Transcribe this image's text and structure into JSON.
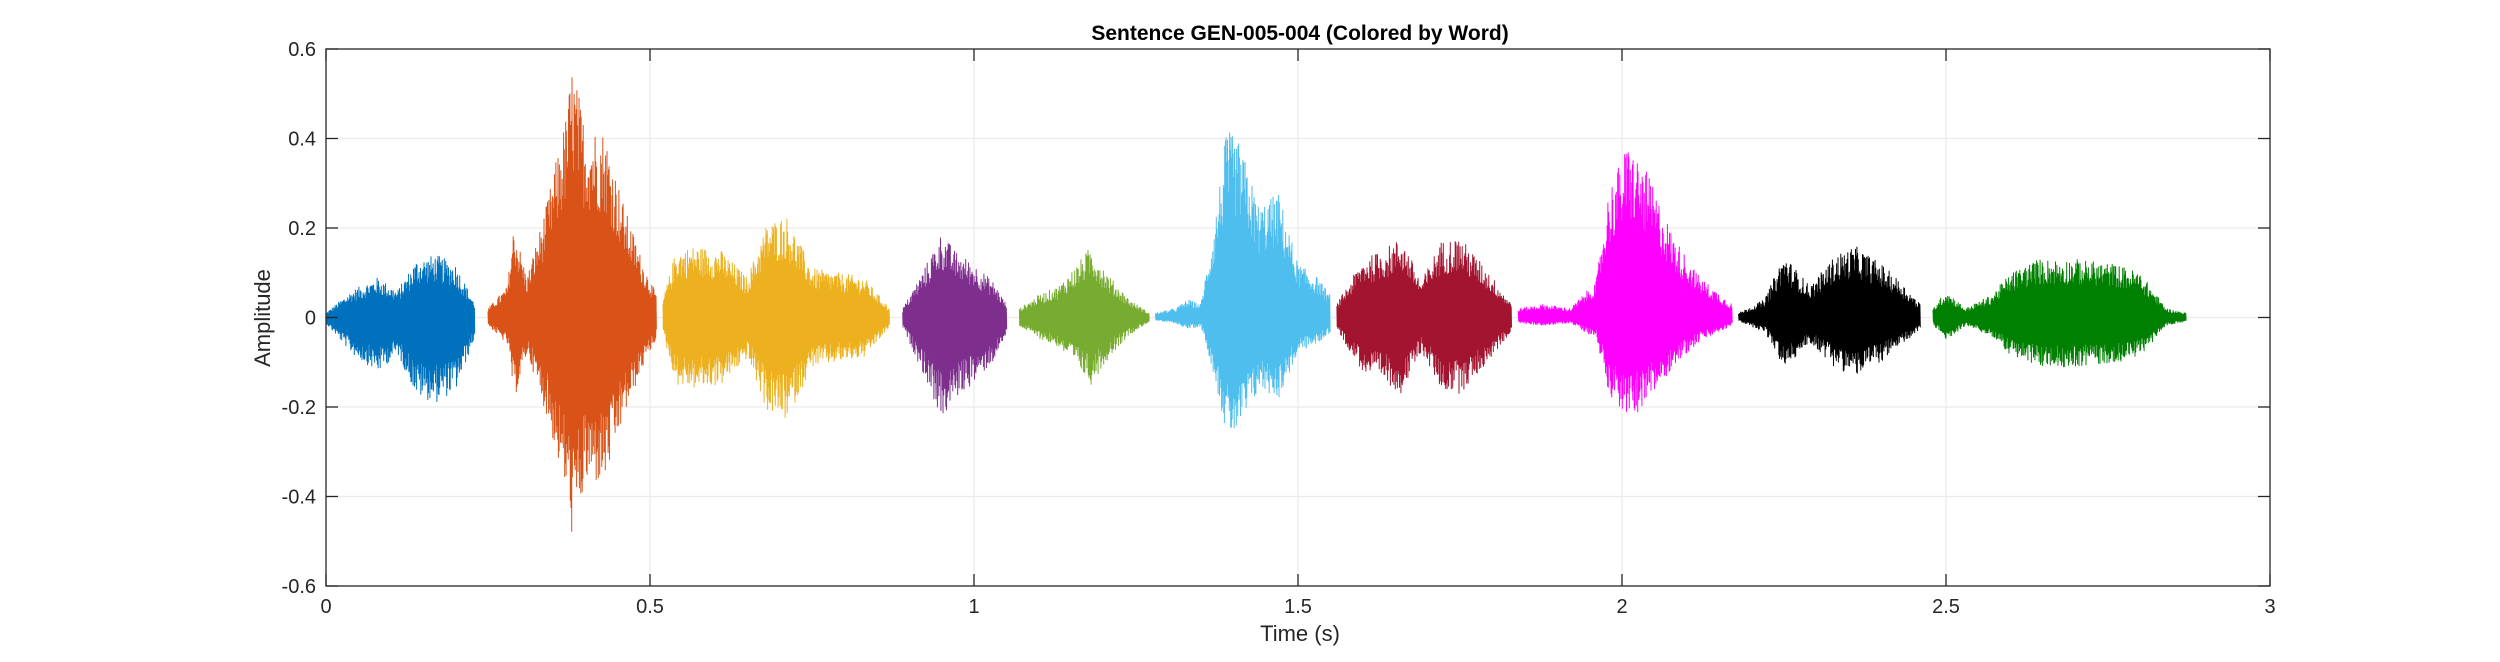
{
  "chart_data": {
    "type": "line",
    "title": "Sentence GEN-005-004 (Colored by Word)",
    "xlabel": "Time (s)",
    "ylabel": "Amplitude",
    "xlim": [
      0,
      3
    ],
    "ylim": [
      -0.6,
      0.6
    ],
    "grid": true,
    "legend": "none",
    "x_ticks": [
      0,
      0.5,
      1,
      1.5,
      2,
      2.5,
      3
    ],
    "x_tick_labels": [
      "0",
      "0.5",
      "1",
      "1.5",
      "2",
      "2.5",
      "3"
    ],
    "y_ticks": [
      0.6,
      0.4,
      0.2,
      0,
      -0.2,
      -0.4,
      -0.6
    ],
    "y_tick_labels": [
      "0.6",
      "0.4",
      "0.2",
      "0",
      "-0.2",
      "-0.4",
      "-0.6"
    ],
    "series": [
      {
        "color": "#0072BD",
        "t_start": 0.0,
        "t_end": 0.23,
        "envelope": [
          [
            0.0,
            0.01
          ],
          [
            0.04,
            0.06
          ],
          [
            0.08,
            0.09
          ],
          [
            0.11,
            0.06
          ],
          [
            0.14,
            0.13
          ],
          [
            0.17,
            0.14
          ],
          [
            0.2,
            0.12
          ],
          [
            0.23,
            0.03
          ]
        ],
        "min": -0.19
      },
      {
        "color": "#D95319",
        "t_start": 0.25,
        "t_end": 0.51,
        "envelope": [
          [
            0.25,
            0.02
          ],
          [
            0.28,
            0.07
          ],
          [
            0.29,
            0.21
          ],
          [
            0.31,
            0.09
          ],
          [
            0.34,
            0.25
          ],
          [
            0.37,
            0.45
          ],
          [
            0.38,
            0.57
          ],
          [
            0.4,
            0.43
          ],
          [
            0.43,
            0.42
          ],
          [
            0.46,
            0.25
          ],
          [
            0.49,
            0.12
          ],
          [
            0.51,
            0.05
          ]
        ],
        "min": -0.5
      },
      {
        "color": "#EDB120",
        "t_start": 0.52,
        "t_end": 0.87,
        "envelope": [
          [
            0.52,
            0.04
          ],
          [
            0.54,
            0.15
          ],
          [
            0.57,
            0.16
          ],
          [
            0.61,
            0.15
          ],
          [
            0.65,
            0.09
          ],
          [
            0.68,
            0.21
          ],
          [
            0.71,
            0.23
          ],
          [
            0.75,
            0.11
          ],
          [
            0.79,
            0.1
          ],
          [
            0.83,
            0.09
          ],
          [
            0.87,
            0.02
          ]
        ],
        "min": -0.23
      },
      {
        "color": "#7E2F8E",
        "t_start": 0.89,
        "t_end": 1.05,
        "envelope": [
          [
            0.89,
            0.02
          ],
          [
            0.92,
            0.1
          ],
          [
            0.95,
            0.19
          ],
          [
            0.97,
            0.15
          ],
          [
            1.0,
            0.12
          ],
          [
            1.03,
            0.08
          ],
          [
            1.05,
            0.03
          ]
        ],
        "min": -0.23
      },
      {
        "color": "#77AC30",
        "t_start": 1.07,
        "t_end": 1.27,
        "envelope": [
          [
            1.07,
            0.02
          ],
          [
            1.1,
            0.05
          ],
          [
            1.13,
            0.07
          ],
          [
            1.16,
            0.12
          ],
          [
            1.18,
            0.16
          ],
          [
            1.21,
            0.09
          ],
          [
            1.24,
            0.04
          ],
          [
            1.27,
            0.01
          ]
        ],
        "min": -0.15
      },
      {
        "color": "#4DBEEE",
        "t_start": 1.28,
        "t_end": 1.55,
        "envelope": [
          [
            1.28,
            0.01
          ],
          [
            1.31,
            0.02
          ],
          [
            1.33,
            0.04
          ],
          [
            1.35,
            0.03
          ],
          [
            1.37,
            0.2
          ],
          [
            1.39,
            0.42
          ],
          [
            1.41,
            0.39
          ],
          [
            1.44,
            0.25
          ],
          [
            1.47,
            0.28
          ],
          [
            1.5,
            0.12
          ],
          [
            1.53,
            0.09
          ],
          [
            1.55,
            0.05
          ]
        ],
        "min": -0.27
      },
      {
        "color": "#A2142F",
        "t_start": 1.56,
        "t_end": 1.83,
        "envelope": [
          [
            1.56,
            0.03
          ],
          [
            1.6,
            0.13
          ],
          [
            1.63,
            0.15
          ],
          [
            1.66,
            0.18
          ],
          [
            1.69,
            0.08
          ],
          [
            1.72,
            0.17
          ],
          [
            1.75,
            0.18
          ],
          [
            1.79,
            0.11
          ],
          [
            1.83,
            0.03
          ]
        ],
        "min": -0.17
      },
      {
        "color": "#FF00FF",
        "t_start": 1.84,
        "t_end": 2.17,
        "envelope": [
          [
            1.84,
            0.02
          ],
          [
            1.88,
            0.03
          ],
          [
            1.92,
            0.02
          ],
          [
            1.96,
            0.08
          ],
          [
            1.98,
            0.29
          ],
          [
            2.01,
            0.39
          ],
          [
            2.04,
            0.32
          ],
          [
            2.08,
            0.18
          ],
          [
            2.12,
            0.09
          ],
          [
            2.17,
            0.03
          ]
        ],
        "min": -0.23
      },
      {
        "color": "#000000",
        "t_start": 2.18,
        "t_end": 2.46,
        "envelope": [
          [
            2.18,
            0.01
          ],
          [
            2.22,
            0.04
          ],
          [
            2.25,
            0.14
          ],
          [
            2.29,
            0.07
          ],
          [
            2.33,
            0.14
          ],
          [
            2.36,
            0.16
          ],
          [
            2.4,
            0.12
          ],
          [
            2.43,
            0.08
          ],
          [
            2.46,
            0.03
          ]
        ],
        "min": -0.13
      },
      {
        "color": "#008000",
        "t_start": 2.48,
        "t_end": 2.87,
        "envelope": [
          [
            2.48,
            0.02
          ],
          [
            2.5,
            0.06
          ],
          [
            2.53,
            0.02
          ],
          [
            2.57,
            0.05
          ],
          [
            2.6,
            0.1
          ],
          [
            2.64,
            0.13
          ],
          [
            2.7,
            0.13
          ],
          [
            2.76,
            0.12
          ],
          [
            2.8,
            0.1
          ],
          [
            2.84,
            0.02
          ],
          [
            2.87,
            0.01
          ]
        ],
        "min": -0.11
      }
    ]
  },
  "colors": {
    "grid": "#ebebeb",
    "axis": "#262626",
    "background": "#ffffff"
  }
}
